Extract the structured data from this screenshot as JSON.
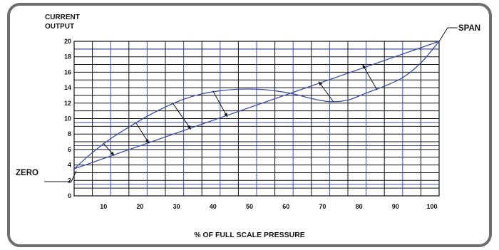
{
  "chart_data": {
    "type": "line",
    "ylabel_lines": [
      "CURRENT",
      "OUTPUT"
    ],
    "xlabel": "% OF FULL SCALE PRESSURE",
    "x_ticks": [
      10,
      20,
      30,
      40,
      50,
      60,
      70,
      80,
      90,
      100
    ],
    "y_ticks": [
      0,
      2,
      4,
      6,
      8,
      10,
      12,
      14,
      16,
      18,
      20
    ],
    "xlim": [
      0,
      100
    ],
    "ylim": [
      0,
      20
    ],
    "grid": true,
    "annotations": {
      "zero": "ZERO",
      "span": "SPAN"
    },
    "series": [
      {
        "x": [
          0,
          100
        ],
        "y": [
          3.5,
          20
        ]
      },
      {
        "x": [
          0,
          5,
          10,
          15,
          20,
          25,
          30,
          35,
          40,
          45,
          50,
          55,
          60,
          65,
          70,
          75,
          80,
          85,
          90,
          95,
          100
        ],
        "y": [
          3.5,
          5.6,
          7.4,
          8.9,
          10.3,
          11.5,
          12.5,
          13.2,
          13.6,
          13.8,
          13.8,
          13.6,
          13.2,
          12.6,
          12.2,
          12.4,
          13.3,
          14.2,
          15.3,
          17.2,
          20
        ]
      }
    ],
    "arrows": [
      {
        "x1": 8,
        "y1": 6.8,
        "x2": 11,
        "y2": 5.2
      },
      {
        "x1": 17,
        "y1": 9.4,
        "x2": 20.5,
        "y2": 6.8
      },
      {
        "x1": 27,
        "y1": 12.0,
        "x2": 32,
        "y2": 8.6
      },
      {
        "x1": 38,
        "y1": 13.6,
        "x2": 42,
        "y2": 10.2
      },
      {
        "x1": 71,
        "y1": 12.2,
        "x2": 67,
        "y2": 14.8
      },
      {
        "x1": 83,
        "y1": 13.7,
        "x2": 79,
        "y2": 17.0
      }
    ]
  }
}
